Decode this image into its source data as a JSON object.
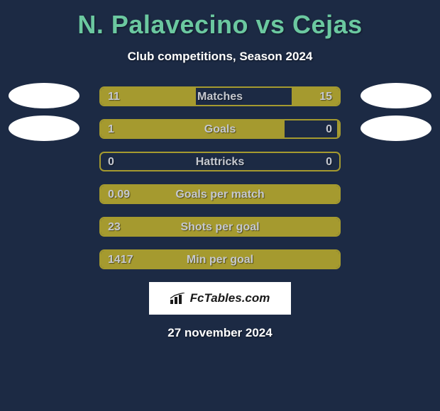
{
  "title_color": "#6bc8a0",
  "background_color": "#1c2a44",
  "bar_color": "#a59a2f",
  "text_color": "#c5c8cf",
  "players": {
    "left": "N. Palavecino",
    "right": "Cejas"
  },
  "title": "N. Palavecino vs Cejas",
  "subtitle": "Club competitions, Season 2024",
  "date": "27 november 2024",
  "logo_text": "FcTables.com",
  "rows": [
    {
      "label": "Matches",
      "left_val": "11",
      "right_val": "15",
      "left_pct": 40,
      "right_pct": 20,
      "full": false,
      "show_left_avatar": true,
      "show_right_avatar": true
    },
    {
      "label": "Goals",
      "left_val": "1",
      "right_val": "0",
      "left_pct": 77,
      "right_pct": 1,
      "full": false,
      "show_left_avatar": true,
      "show_right_avatar": true
    },
    {
      "label": "Hattricks",
      "left_val": "0",
      "right_val": "0",
      "left_pct": 0,
      "right_pct": 0,
      "full": false,
      "show_left_avatar": false,
      "show_right_avatar": false
    },
    {
      "label": "Goals per match",
      "left_val": "0.09",
      "right_val": "",
      "left_pct": 100,
      "right_pct": 0,
      "full": true,
      "show_left_avatar": false,
      "show_right_avatar": false
    },
    {
      "label": "Shots per goal",
      "left_val": "23",
      "right_val": "",
      "left_pct": 100,
      "right_pct": 0,
      "full": true,
      "show_left_avatar": false,
      "show_right_avatar": false
    },
    {
      "label": "Min per goal",
      "left_val": "1417",
      "right_val": "",
      "left_pct": 100,
      "right_pct": 0,
      "full": true,
      "show_left_avatar": false,
      "show_right_avatar": false
    }
  ]
}
